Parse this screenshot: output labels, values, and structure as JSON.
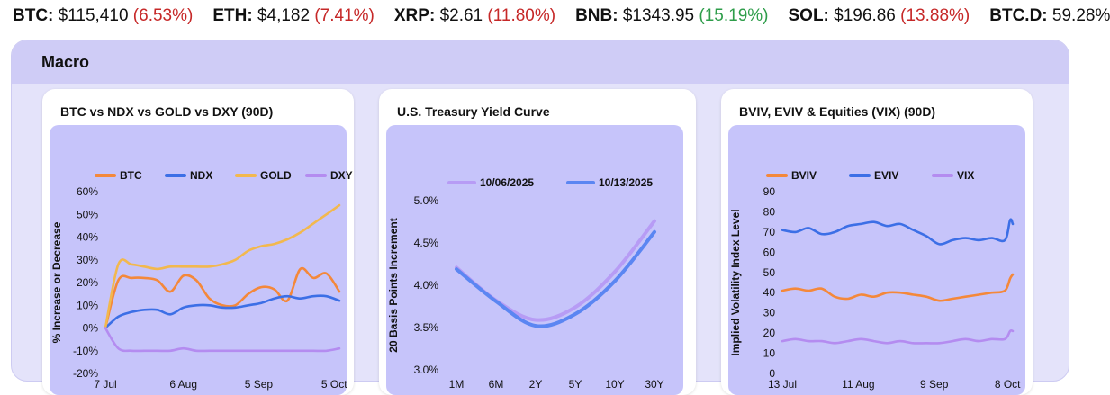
{
  "ticker": [
    {
      "symbol": "BTC:",
      "price": "$115,410",
      "change": "(6.53%)",
      "dir": "neg"
    },
    {
      "symbol": "ETH:",
      "price": "$4,182",
      "change": "(7.41%)",
      "dir": "neg"
    },
    {
      "symbol": "XRP:",
      "price": "$2.61",
      "change": "(11.80%)",
      "dir": "neg"
    },
    {
      "symbol": "BNB:",
      "price": "$1343.95",
      "change": "(15.19%)",
      "dir": "pos"
    },
    {
      "symbol": "SOL:",
      "price": "$196.86",
      "change": "(13.88%)",
      "dir": "neg"
    },
    {
      "symbol": "BTC.D:",
      "price": "59.28%",
      "change": "",
      "dir": ""
    }
  ],
  "section": {
    "title": "Macro"
  },
  "colors": {
    "btc": "#f4883a",
    "ndx": "#3c6fe6",
    "gold": "#f2b84e",
    "dxy": "#b48cf0",
    "bviv": "#f4883a",
    "eviv": "#3c6fe6",
    "vix": "#b48cf0",
    "curve_0606": "#b79cf5",
    "curve_1013": "#5b86f2",
    "plot_bg": "#c6c4fa",
    "section_bg": "#e4e3fa",
    "negative": "#c62828",
    "positive": "#2e9d4a"
  },
  "chart_data": [
    {
      "type": "line",
      "title": "BTC vs NDX vs GOLD vs DXY (90D)",
      "xlabel": "",
      "ylabel": "% Increase or Decrease",
      "ylim": [
        -20,
        60
      ],
      "yticks": [
        "-20%",
        "-10%",
        "0%",
        "10%",
        "20%",
        "30%",
        "40%",
        "50%",
        "60%"
      ],
      "xticks": [
        "7 Jul",
        "6 Aug",
        "5 Sep",
        "5 Oct"
      ],
      "x": [
        0,
        5,
        10,
        15,
        20,
        25,
        30,
        35,
        40,
        45,
        50,
        55,
        60,
        65,
        70,
        75,
        80,
        85,
        90
      ],
      "legend": "top",
      "grid": false,
      "series": [
        {
          "name": "BTC",
          "values": [
            0,
            21,
            22,
            22,
            21,
            16,
            23,
            21,
            13,
            10,
            10,
            15,
            18,
            17,
            12,
            26,
            22,
            24,
            16
          ]
        },
        {
          "name": "NDX",
          "values": [
            0,
            5,
            7,
            8,
            8,
            6,
            9,
            10,
            10,
            9,
            9,
            10,
            11,
            13,
            14,
            13,
            14,
            14,
            12
          ]
        },
        {
          "name": "GOLD",
          "values": [
            0,
            28,
            28,
            27,
            26,
            27,
            27,
            27,
            27,
            28,
            30,
            34,
            36,
            37,
            39,
            42,
            46,
            50,
            54
          ]
        },
        {
          "name": "DXY",
          "values": [
            0,
            -9,
            -10,
            -10,
            -10,
            -10,
            -9,
            -10,
            -10,
            -10,
            -10,
            -10,
            -10,
            -10,
            -10,
            -10,
            -10,
            -10,
            -9
          ]
        }
      ]
    },
    {
      "type": "line",
      "title": "U.S. Treasury Yield Curve",
      "xlabel": "",
      "ylabel": "20 Basis Points Increment",
      "ylim": [
        3.0,
        5.0
      ],
      "yticks": [
        "3.0%",
        "3.5%",
        "4.0%",
        "4.5%",
        "5.0%"
      ],
      "categories": [
        "1M",
        "6M",
        "2Y",
        "5Y",
        "10Y",
        "30Y"
      ],
      "legend": "top",
      "grid": false,
      "series": [
        {
          "name": "10/06/2025",
          "values": [
            4.21,
            3.82,
            3.59,
            3.74,
            4.16,
            4.76
          ]
        },
        {
          "name": "10/13/2025",
          "values": [
            4.19,
            3.81,
            3.52,
            3.66,
            4.05,
            4.63
          ]
        }
      ]
    },
    {
      "type": "line",
      "title": "BVIV, EVIV & Equities (VIX) (90D)",
      "xlabel": "",
      "ylabel": "Implied Volatility Index Level",
      "ylim": [
        0,
        90
      ],
      "yticks": [
        "0",
        "10",
        "20",
        "30",
        "40",
        "50",
        "60",
        "70",
        "80",
        "90"
      ],
      "xticks": [
        "13 Jul",
        "11 Aug",
        "9 Sep",
        "8 Oct"
      ],
      "x": [
        0,
        5,
        10,
        15,
        20,
        25,
        30,
        35,
        40,
        45,
        50,
        55,
        60,
        65,
        70,
        75,
        80,
        85,
        87,
        88
      ],
      "legend": "top",
      "grid": false,
      "series": [
        {
          "name": "BVIV",
          "values": [
            41,
            42,
            41,
            42,
            38,
            37,
            39,
            38,
            40,
            40,
            39,
            38,
            36,
            37,
            38,
            39,
            40,
            41,
            47,
            49
          ]
        },
        {
          "name": "EVIV",
          "values": [
            71,
            70,
            72,
            69,
            70,
            73,
            74,
            75,
            73,
            74,
            71,
            68,
            64,
            66,
            67,
            66,
            67,
            66,
            76,
            74
          ]
        },
        {
          "name": "VIX",
          "values": [
            16,
            17,
            16,
            16,
            15,
            16,
            17,
            16,
            15,
            16,
            15,
            15,
            15,
            16,
            17,
            16,
            17,
            17,
            21,
            21
          ]
        }
      ]
    }
  ]
}
